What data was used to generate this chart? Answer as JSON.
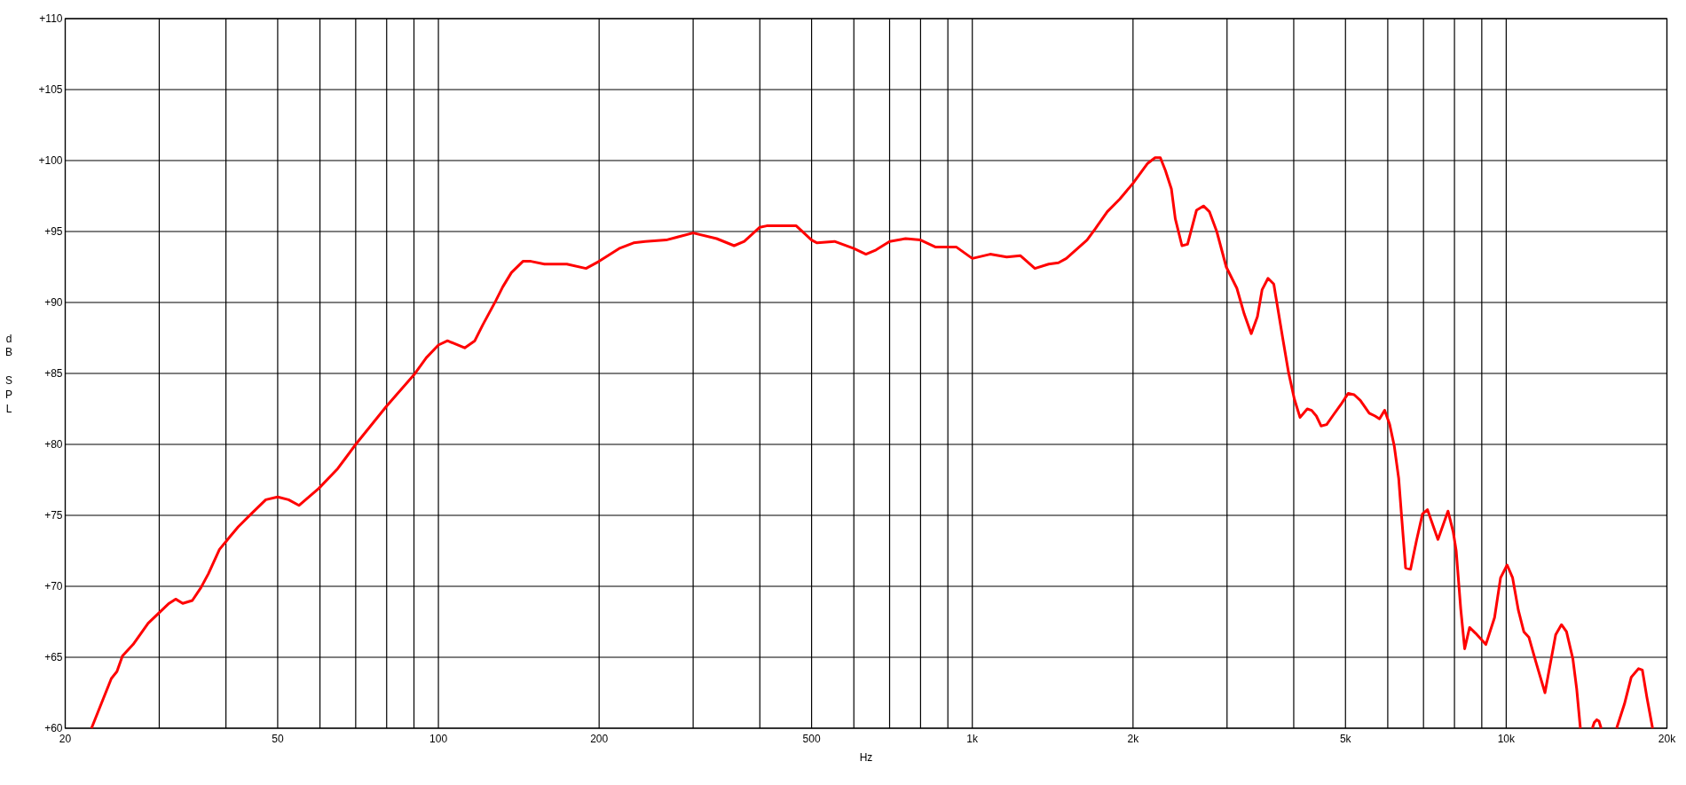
{
  "chart_data": {
    "type": "line",
    "xlabel": "Hz",
    "ylabel": "dB SPL",
    "color": "#ff0000",
    "log": "x",
    "grid": true,
    "xlim": [
      20,
      20000
    ],
    "ylim": [
      60,
      110
    ],
    "xticks": [
      20,
      {
        "value": 30,
        "label": null
      },
      {
        "value": 40,
        "label": null
      },
      50,
      {
        "value": 60,
        "label": null
      },
      {
        "value": 70,
        "label": null
      },
      {
        "value": 80,
        "label": null
      },
      {
        "value": 90,
        "label": null
      },
      100,
      200,
      {
        "value": 300,
        "label": null
      },
      {
        "value": 400,
        "label": null
      },
      500,
      {
        "value": 600,
        "label": null
      },
      {
        "value": 700,
        "label": null
      },
      {
        "value": 800,
        "label": null
      },
      {
        "value": 900,
        "label": null
      },
      {
        "value": 1000,
        "label": "1k"
      },
      {
        "value": 2000,
        "label": "2k"
      },
      {
        "value": 3000,
        "label": null
      },
      {
        "value": 4000,
        "label": null
      },
      {
        "value": 5000,
        "label": "5k"
      },
      {
        "value": 6000,
        "label": null
      },
      {
        "value": 7000,
        "label": null
      },
      {
        "value": 8000,
        "label": null
      },
      {
        "value": 9000,
        "label": null
      },
      {
        "value": 10000,
        "label": "10k"
      },
      {
        "value": 20000,
        "label": "20k"
      }
    ],
    "yticks": [
      {
        "value": 60,
        "label": "+60"
      },
      {
        "value": 65,
        "label": "+65"
      },
      {
        "value": 70,
        "label": "+70"
      },
      {
        "value": 75,
        "label": "+75"
      },
      {
        "value": 80,
        "label": "+80"
      },
      {
        "value": 85,
        "label": "+85"
      },
      {
        "value": 90,
        "label": "+90"
      },
      {
        "value": 95,
        "label": "+95"
      },
      {
        "value": 100,
        "label": "+100"
      },
      {
        "value": 105,
        "label": "+105"
      },
      {
        "value": 110,
        "label": "+110"
      }
    ],
    "x": [
      22.4,
      24.4,
      25.0,
      25.6,
      26.8,
      28.6,
      30.1,
      31.3,
      32.2,
      33.2,
      34.6,
      35.9,
      37.1,
      38.9,
      40.7,
      42.2,
      44.6,
      47.5,
      50,
      52.4,
      54.8,
      59.7,
      64.8,
      66.9,
      70,
      80,
      90,
      94.9,
      100,
      104,
      112,
      117,
      121,
      128,
      132,
      137,
      144,
      149,
      158,
      174,
      189,
      200,
      218,
      232,
      244,
      267,
      300,
      332,
      358,
      374,
      400,
      412,
      468,
      500,
      512,
      552,
      600,
      632,
      660,
      700,
      750,
      800,
      854,
      934,
      1000,
      1080,
      1160,
      1230,
      1310,
      1390,
      1450,
      1500,
      1640,
      1700,
      1790,
      1890,
      2000,
      2130,
      2200,
      2250,
      2300,
      2360,
      2400,
      2470,
      2530,
      2630,
      2710,
      2780,
      2870,
      2990,
      3130,
      3230,
      3330,
      3420,
      3490,
      3580,
      3670,
      3810,
      3910,
      4010,
      4110,
      4240,
      4320,
      4410,
      4500,
      4610,
      4730,
      4900,
      5060,
      5190,
      5330,
      5540,
      5680,
      5790,
      5920,
      6050,
      6170,
      6290,
      6370,
      6480,
      6620,
      6790,
      6970,
      7120,
      7450,
      7780,
      7960,
      8060,
      8220,
      8360,
      8540,
      8760,
      9160,
      9510,
      9760,
      10040,
      10280,
      10540,
      10790,
      11030,
      11380,
      11820,
      12380,
      12690,
      12970,
      13330,
      13550,
      13770,
      14100,
      14500,
      14620,
      14780,
      14920,
      15060,
      15600,
      16100,
      16650,
      17150,
      17700,
      17990,
      18340,
      18800
    ],
    "values": [
      60.0,
      63.5,
      64.0,
      65.1,
      65.9,
      67.4,
      68.2,
      68.8,
      69.1,
      68.8,
      69.0,
      69.9,
      70.9,
      72.6,
      73.5,
      74.2,
      75.1,
      76.1,
      76.3,
      76.1,
      75.7,
      76.9,
      78.3,
      79.0,
      80.0,
      82.7,
      84.9,
      86.1,
      87.0,
      87.3,
      86.8,
      87.3,
      88.4,
      90.1,
      91.1,
      92.1,
      92.9,
      92.9,
      92.7,
      92.7,
      92.4,
      92.9,
      93.8,
      94.2,
      94.3,
      94.4,
      94.9,
      94.5,
      94.0,
      94.3,
      95.3,
      95.4,
      95.4,
      94.4,
      94.2,
      94.3,
      93.8,
      93.4,
      93.7,
      94.3,
      94.5,
      94.4,
      93.9,
      93.9,
      93.1,
      93.4,
      93.2,
      93.3,
      92.4,
      92.7,
      92.8,
      93.1,
      94.4,
      95.2,
      96.4,
      97.3,
      98.4,
      99.8,
      100.2,
      100.2,
      99.3,
      98.0,
      95.9,
      94.0,
      94.1,
      96.5,
      96.8,
      96.4,
      95.0,
      92.5,
      91.0,
      89.2,
      87.8,
      89.0,
      90.9,
      91.7,
      91.3,
      87.6,
      85.1,
      83.2,
      81.9,
      82.5,
      82.4,
      82.0,
      81.3,
      81.4,
      82.0,
      82.8,
      83.6,
      83.5,
      83.1,
      82.2,
      82.0,
      81.8,
      82.4,
      81.4,
      79.9,
      77.6,
      74.9,
      71.3,
      71.2,
      73.2,
      75.1,
      75.4,
      73.3,
      75.3,
      73.8,
      72.5,
      68.4,
      65.6,
      67.1,
      66.7,
      65.9,
      67.8,
      70.6,
      71.5,
      70.6,
      68.3,
      66.8,
      66.4,
      64.6,
      62.5,
      66.6,
      67.3,
      66.8,
      64.9,
      62.8,
      60.0,
      null,
      60.0,
      60.4,
      60.6,
      60.5,
      60.0,
      null,
      60.0,
      61.7,
      63.6,
      64.2,
      64.1,
      62.2,
      60.0
    ]
  }
}
